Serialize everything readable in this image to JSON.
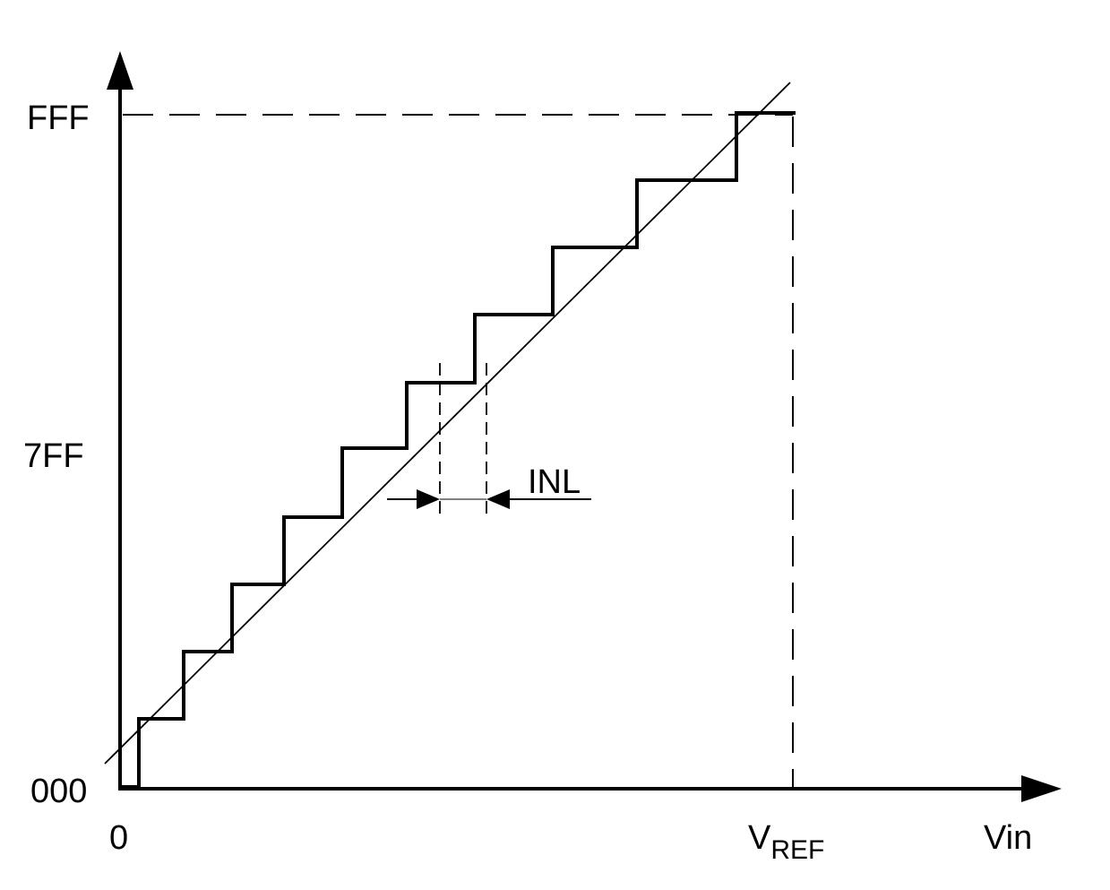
{
  "labels": {
    "y_top": "FFF",
    "y_mid": "7FF",
    "y_bottom": "000",
    "x_origin": "0",
    "x_ref_main": "V",
    "x_ref_sub": "REF",
    "x_axis": "Vin",
    "inl": "INL"
  },
  "colors": {
    "line": "#000000",
    "background": "#ffffff"
  }
}
